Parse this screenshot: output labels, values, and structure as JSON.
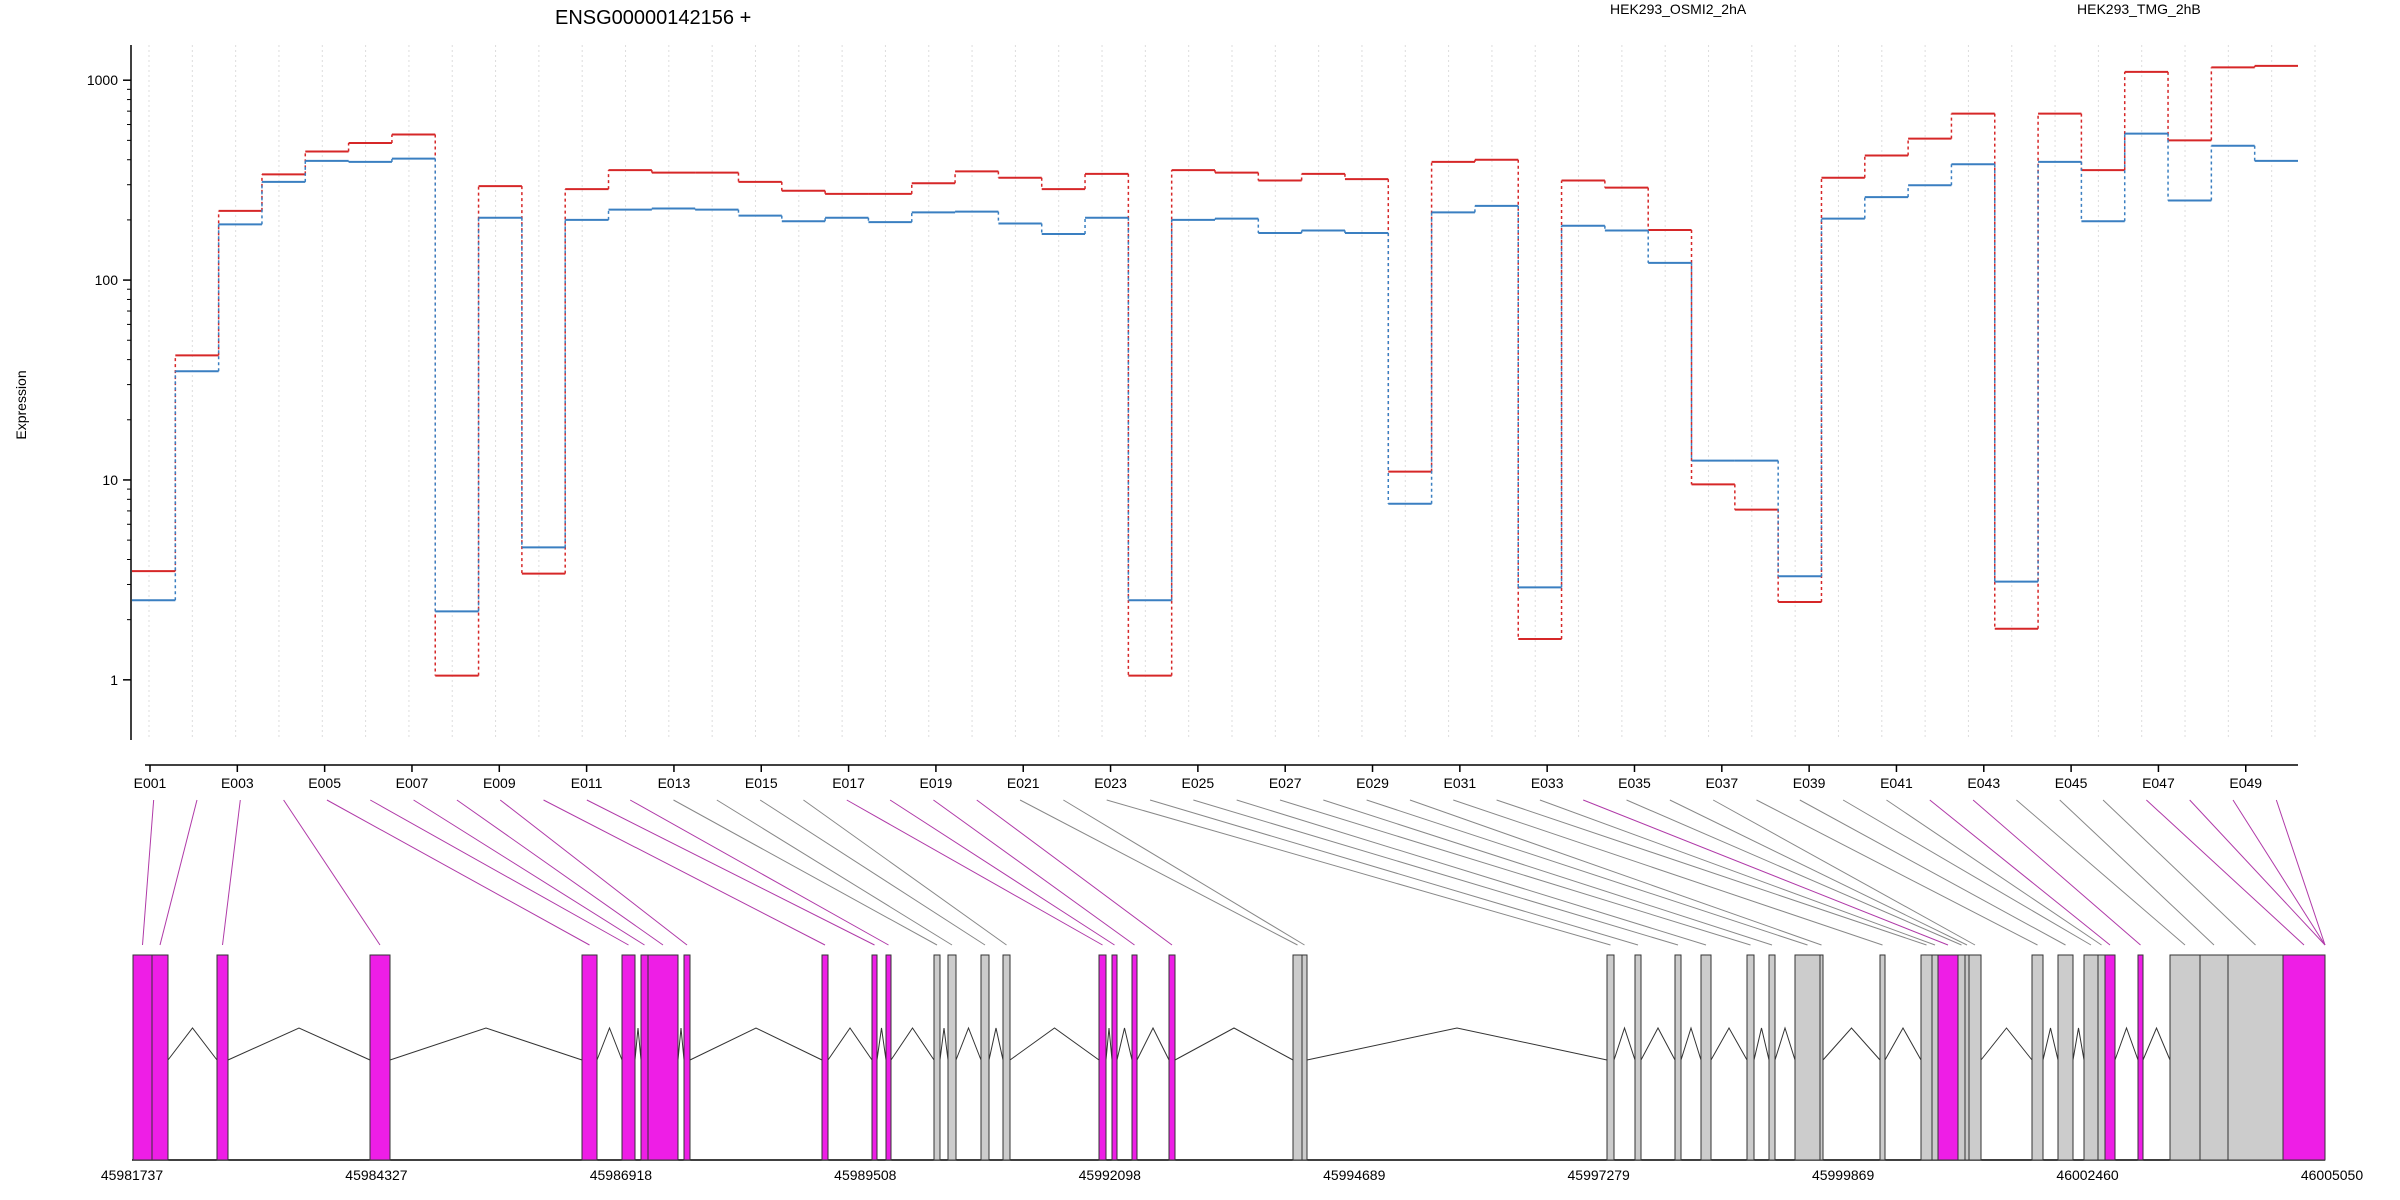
{
  "chart_data": {
    "type": "line",
    "title": "ENSG00000142156 +",
    "ylabel": "Expression",
    "xlabel": "",
    "yscale": "log",
    "ylim": [
      0.5,
      1500
    ],
    "yticks": [
      1,
      10,
      100,
      1000
    ],
    "ytick_labels": [
      "1",
      "10",
      "100",
      "1000"
    ],
    "grid": "vertical dotted",
    "legend_placement": "top",
    "exons": [
      "E001",
      "E002",
      "E003",
      "E004",
      "E005",
      "E006",
      "E007",
      "E008",
      "E009",
      "E010",
      "E011",
      "E012",
      "E013",
      "E014",
      "E015",
      "E016",
      "E017",
      "E018",
      "E019",
      "E020",
      "E021",
      "E022",
      "E023",
      "E024",
      "E025",
      "E026",
      "E027",
      "E028",
      "E029",
      "E030",
      "E031",
      "E032",
      "E033",
      "E034",
      "E035",
      "E036",
      "E037",
      "E038",
      "E039",
      "E040",
      "E041",
      "E042",
      "E043",
      "E044",
      "E045",
      "E046",
      "E047",
      "E048",
      "E049",
      "E050"
    ],
    "exon_labels_shown": [
      "E001",
      "E003",
      "E005",
      "E007",
      "E009",
      "E011",
      "E013",
      "E015",
      "E017",
      "E019",
      "E021",
      "E023",
      "E025",
      "E027",
      "E029",
      "E031",
      "E033",
      "E035",
      "E037",
      "E039",
      "E041",
      "E043",
      "E045",
      "E047",
      "E049"
    ],
    "series": [
      {
        "name": "HEK293_OSMI2_2hA",
        "color": "#d62728",
        "values": [
          3.5,
          42,
          222,
          338,
          440,
          485,
          535,
          1.05,
          295,
          3.4,
          285,
          355,
          345,
          345,
          310,
          280,
          270,
          270,
          305,
          350,
          325,
          285,
          340,
          1.05,
          355,
          345,
          315,
          340,
          320,
          11,
          390,
          400,
          1.6,
          315,
          290,
          178,
          9.5,
          7.1,
          2.45,
          325,
          420,
          510,
          680,
          1.8,
          680,
          355,
          1100,
          500,
          1160,
          1180
        ]
      },
      {
        "name": "HEK293_TMG_2hB",
        "color": "#3a7fc1",
        "values": [
          2.5,
          35,
          190,
          310,
          395,
          390,
          405,
          2.2,
          205,
          4.6,
          200,
          225,
          228,
          225,
          210,
          197,
          205,
          195,
          218,
          220,
          192,
          170,
          205,
          2.5,
          200,
          203,
          172,
          177,
          172,
          7.6,
          218,
          235,
          2.9,
          187,
          177,
          122,
          12.5,
          12.5,
          3.3,
          203,
          260,
          298,
          380,
          3.1,
          390,
          197,
          540,
          250,
          470,
          395
        ]
      }
    ],
    "genomic_axis": {
      "ticks": [
        "45981737",
        "45984327",
        "45986918",
        "45989508",
        "45992098",
        "45994689",
        "45997279",
        "45999869",
        "46002460",
        "46005050"
      ]
    },
    "exon_highlight": [
      true,
      true,
      true,
      true,
      true,
      true,
      true,
      true,
      true,
      true,
      true,
      true,
      false,
      false,
      false,
      false,
      true,
      true,
      true,
      true,
      false,
      false,
      false,
      false,
      false,
      false,
      false,
      false,
      false,
      false,
      false,
      false,
      false,
      true,
      false,
      false,
      false,
      false,
      false,
      false,
      false,
      true,
      true,
      false,
      false,
      false,
      true,
      true,
      true,
      true
    ],
    "colors": {
      "highlight": "#ee1ee6",
      "plain": "#cccccc",
      "outline": "#333333"
    }
  }
}
